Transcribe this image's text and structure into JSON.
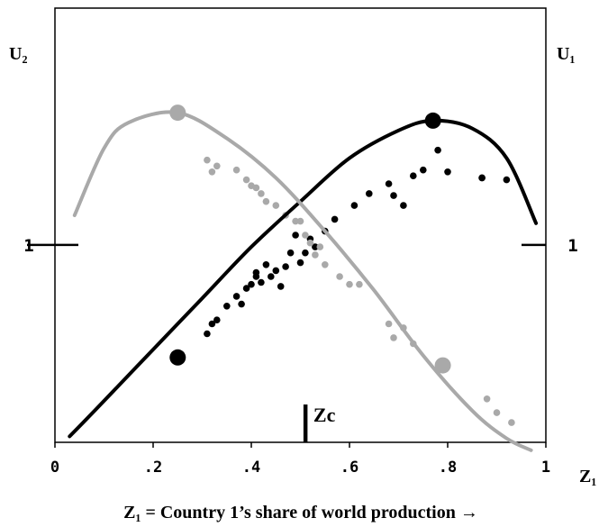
{
  "chart_data": {
    "type": "scatter",
    "title": "",
    "xlabel": "Z₁ = Country 1’s share of world production →",
    "ylabel_left": "U₂",
    "ylabel_right": "U₁",
    "x_axis_end_label": "Z₁",
    "xlim": [
      0,
      1
    ],
    "ylim": [
      0,
      2.2
    ],
    "x_ticks": [
      {
        "value": 0,
        "label": "0"
      },
      {
        "value": 0.2,
        "label": ".2"
      },
      {
        "value": 0.4,
        "label": ".4"
      },
      {
        "value": 0.6,
        "label": ".6"
      },
      {
        "value": 0.8,
        "label": ".8"
      },
      {
        "value": 1,
        "label": "1"
      }
    ],
    "y_ticks": [
      {
        "value": 1,
        "label": "1"
      }
    ],
    "zc_marker": {
      "x": 0.51,
      "label": "Zc"
    },
    "colors": {
      "country1": "#000000",
      "country2": "#a9a9a9"
    },
    "series": [
      {
        "key": "u1-curve",
        "kind": "line",
        "color": "#000000",
        "x": [
          0.03,
          0.1,
          0.2,
          0.3,
          0.4,
          0.5,
          0.6,
          0.7,
          0.77,
          0.85,
          0.92,
          0.98
        ],
        "y": [
          0.03,
          0.21,
          0.47,
          0.73,
          0.99,
          1.22,
          1.44,
          1.58,
          1.63,
          1.59,
          1.44,
          1.11
        ]
      },
      {
        "key": "u2-curve",
        "kind": "line",
        "color": "#a9a9a9",
        "x": [
          0.04,
          0.1,
          0.15,
          0.25,
          0.35,
          0.45,
          0.55,
          0.65,
          0.75,
          0.85,
          0.92,
          0.97
        ],
        "y": [
          1.15,
          1.49,
          1.62,
          1.67,
          1.54,
          1.34,
          1.07,
          0.77,
          0.44,
          0.16,
          0.02,
          -0.04
        ]
      },
      {
        "key": "u1-optimum",
        "kind": "point-large",
        "color": "#000000",
        "x": [
          0.25,
          0.77
        ],
        "y": [
          0.43,
          1.63
        ]
      },
      {
        "key": "u2-optimum",
        "kind": "point-large",
        "color": "#a9a9a9",
        "x": [
          0.25,
          0.79
        ],
        "y": [
          1.67,
          0.39
        ]
      },
      {
        "key": "country1-points",
        "kind": "points",
        "color": "#000000",
        "x": [
          0.31,
          0.32,
          0.33,
          0.35,
          0.37,
          0.38,
          0.39,
          0.4,
          0.41,
          0.41,
          0.42,
          0.43,
          0.44,
          0.45,
          0.46,
          0.47,
          0.48,
          0.49,
          0.5,
          0.51,
          0.52,
          0.53,
          0.55,
          0.57,
          0.61,
          0.64,
          0.68,
          0.69,
          0.71,
          0.73,
          0.75,
          0.78,
          0.8,
          0.87,
          0.87,
          0.92
        ],
        "y": [
          0.55,
          0.6,
          0.62,
          0.69,
          0.74,
          0.7,
          0.78,
          0.8,
          0.84,
          0.86,
          0.81,
          0.9,
          0.84,
          0.87,
          0.79,
          0.89,
          0.96,
          1.05,
          0.91,
          0.96,
          1.03,
          0.99,
          1.07,
          1.13,
          1.2,
          1.26,
          1.31,
          1.25,
          1.2,
          1.35,
          1.38,
          1.48,
          1.37,
          1.34,
          1.34,
          1.33
        ]
      },
      {
        "key": "country2-points",
        "kind": "points",
        "color": "#a9a9a9",
        "x": [
          0.31,
          0.32,
          0.33,
          0.37,
          0.39,
          0.4,
          0.41,
          0.42,
          0.43,
          0.45,
          0.47,
          0.49,
          0.5,
          0.51,
          0.52,
          0.53,
          0.54,
          0.55,
          0.58,
          0.6,
          0.62,
          0.68,
          0.69,
          0.71,
          0.73,
          0.88,
          0.9,
          0.93
        ],
        "y": [
          1.43,
          1.37,
          1.4,
          1.38,
          1.33,
          1.3,
          1.29,
          1.26,
          1.22,
          1.2,
          1.15,
          1.12,
          1.12,
          1.05,
          1.01,
          0.95,
          0.99,
          0.9,
          0.84,
          0.8,
          0.8,
          0.6,
          0.53,
          0.58,
          0.5,
          0.22,
          0.15,
          0.1
        ]
      }
    ]
  }
}
